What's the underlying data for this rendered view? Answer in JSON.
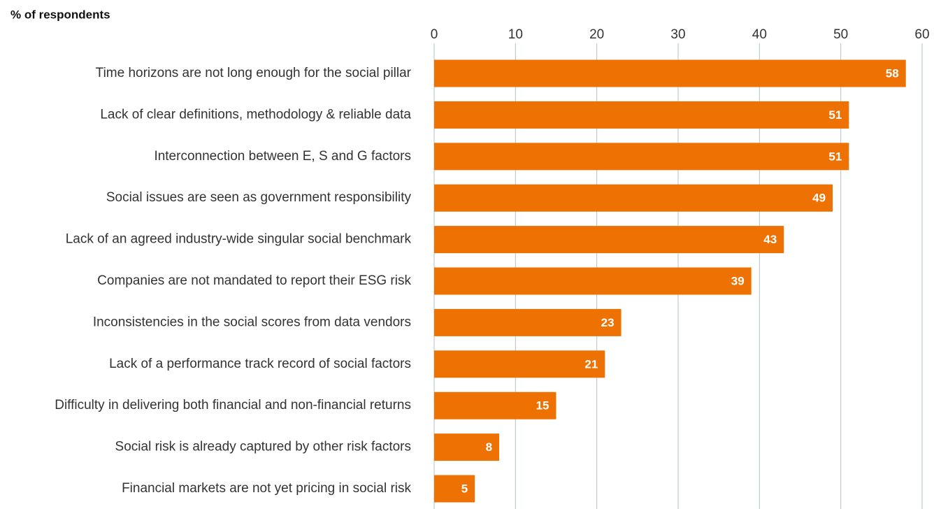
{
  "chart_data": {
    "type": "bar",
    "orientation": "horizontal",
    "title": "% of respondents",
    "categories": [
      "Time horizons are not long enough for the social pillar",
      "Lack of clear definitions, methodology & reliable data",
      "Interconnection between E, S and G factors",
      "Social issues are seen as government responsibility",
      "Lack of an agreed industry-wide singular social benchmark",
      "Companies are not mandated to report their ESG risk",
      "Inconsistencies in the social scores from data vendors",
      "Lack of a performance track record of social factors",
      "Difficulty in delivering both financial and non-financial returns",
      "Social risk is already captured by other risk factors",
      "Financial markets are not yet pricing in social risk"
    ],
    "values": [
      58,
      51,
      51,
      49,
      43,
      39,
      23,
      21,
      15,
      8,
      5
    ],
    "color": "#ee7203",
    "xlim": [
      0,
      60
    ],
    "xticks": [
      0,
      10,
      20,
      30,
      40,
      50,
      60
    ],
    "grid": true
  }
}
